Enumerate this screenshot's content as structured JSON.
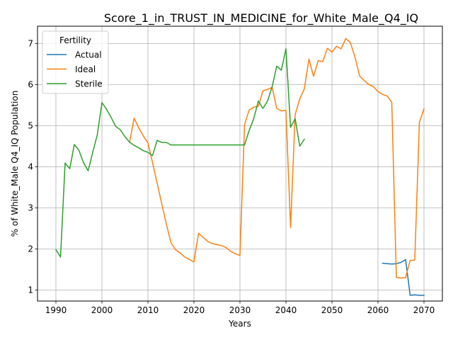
{
  "chart_data": {
    "type": "line",
    "title": "Score_1_in_TRUST_IN_MEDICINE_for_White_Male_Q4_IQ",
    "xlabel": "Years",
    "ylabel": "% of White_Male Q4_IQ Population",
    "xlim": [
      1986,
      2074
    ],
    "ylim": [
      0.73,
      7.42
    ],
    "xticks": [
      1990,
      2000,
      2010,
      2020,
      2030,
      2040,
      2050,
      2060,
      2070
    ],
    "yticks": [
      1,
      2,
      3,
      4,
      5,
      6,
      7
    ],
    "grid": true,
    "legend": {
      "title": "Fertility",
      "placement": "top-left"
    },
    "series": [
      {
        "name": "Actual",
        "color": "#1f77b4",
        "points": [
          [
            2061,
            1.65
          ],
          [
            2062,
            1.64
          ],
          [
            2063,
            1.63
          ],
          [
            2064,
            1.64
          ],
          [
            2065,
            1.67
          ],
          [
            2066,
            1.74
          ],
          [
            2067,
            0.87
          ],
          [
            2068,
            0.88
          ],
          [
            2069,
            0.87
          ],
          [
            2070,
            0.87
          ]
        ]
      },
      {
        "name": "Ideal",
        "color": "#ff7f0e",
        "points": [
          [
            2006,
            4.59
          ],
          [
            2007,
            5.18
          ],
          [
            2008,
            4.95
          ],
          [
            2009,
            4.75
          ],
          [
            2010,
            4.58
          ],
          [
            2011,
            4.1
          ],
          [
            2012,
            3.6
          ],
          [
            2013,
            3.1
          ],
          [
            2014,
            2.6
          ],
          [
            2015,
            2.15
          ],
          [
            2016,
            1.98
          ],
          [
            2017,
            1.9
          ],
          [
            2018,
            1.8
          ],
          [
            2019,
            1.74
          ],
          [
            2020,
            1.68
          ],
          [
            2021,
            2.38
          ],
          [
            2022,
            2.28
          ],
          [
            2023,
            2.18
          ],
          [
            2024,
            2.13
          ],
          [
            2025,
            2.1
          ],
          [
            2026,
            2.08
          ],
          [
            2027,
            2.03
          ],
          [
            2028,
            1.94
          ],
          [
            2029,
            1.88
          ],
          [
            2030,
            1.84
          ],
          [
            2031,
            5.02
          ],
          [
            2032,
            5.38
          ],
          [
            2033,
            5.45
          ],
          [
            2034,
            5.47
          ],
          [
            2035,
            5.85
          ],
          [
            2036,
            5.88
          ],
          [
            2037,
            5.93
          ],
          [
            2038,
            5.42
          ],
          [
            2039,
            5.36
          ],
          [
            2040,
            5.37
          ],
          [
            2041,
            2.52
          ],
          [
            2042,
            5.27
          ],
          [
            2043,
            5.65
          ],
          [
            2044,
            5.9
          ],
          [
            2045,
            6.62
          ],
          [
            2046,
            6.2
          ],
          [
            2047,
            6.58
          ],
          [
            2048,
            6.56
          ],
          [
            2049,
            6.88
          ],
          [
            2050,
            6.79
          ],
          [
            2051,
            6.93
          ],
          [
            2052,
            6.87
          ],
          [
            2053,
            7.12
          ],
          [
            2054,
            7.02
          ],
          [
            2055,
            6.67
          ],
          [
            2056,
            6.21
          ],
          [
            2057,
            6.1
          ],
          [
            2058,
            6.0
          ],
          [
            2059,
            5.95
          ],
          [
            2060,
            5.83
          ],
          [
            2061,
            5.76
          ],
          [
            2062,
            5.72
          ],
          [
            2063,
            5.57
          ],
          [
            2064,
            1.3
          ],
          [
            2065,
            1.29
          ],
          [
            2066,
            1.3
          ],
          [
            2067,
            1.72
          ],
          [
            2068,
            1.73
          ],
          [
            2069,
            5.08
          ],
          [
            2070,
            5.41
          ]
        ]
      },
      {
        "name": "Sterile",
        "color": "#2ca02c",
        "points": [
          [
            1990,
            1.98
          ],
          [
            1991,
            1.8
          ],
          [
            1992,
            4.09
          ],
          [
            1993,
            3.95
          ],
          [
            1994,
            4.54
          ],
          [
            1995,
            4.4
          ],
          [
            1996,
            4.1
          ],
          [
            1997,
            3.9
          ],
          [
            1998,
            4.35
          ],
          [
            1999,
            4.78
          ],
          [
            2000,
            5.56
          ],
          [
            2001,
            5.4
          ],
          [
            2002,
            5.2
          ],
          [
            2003,
            4.98
          ],
          [
            2004,
            4.9
          ],
          [
            2005,
            4.73
          ],
          [
            2006,
            4.6
          ],
          [
            2007,
            4.52
          ],
          [
            2008,
            4.46
          ],
          [
            2009,
            4.39
          ],
          [
            2010,
            4.35
          ],
          [
            2011,
            4.27
          ],
          [
            2012,
            4.64
          ],
          [
            2013,
            4.59
          ],
          [
            2014,
            4.59
          ],
          [
            2015,
            4.53
          ],
          [
            2016,
            4.53
          ],
          [
            2017,
            4.53
          ],
          [
            2018,
            4.53
          ],
          [
            2019,
            4.53
          ],
          [
            2020,
            4.53
          ],
          [
            2021,
            4.53
          ],
          [
            2022,
            4.53
          ],
          [
            2023,
            4.53
          ],
          [
            2024,
            4.53
          ],
          [
            2025,
            4.53
          ],
          [
            2026,
            4.53
          ],
          [
            2027,
            4.53
          ],
          [
            2028,
            4.53
          ],
          [
            2029,
            4.53
          ],
          [
            2030,
            4.53
          ],
          [
            2031,
            4.53
          ],
          [
            2032,
            4.88
          ],
          [
            2033,
            5.17
          ],
          [
            2034,
            5.6
          ],
          [
            2035,
            5.42
          ],
          [
            2036,
            5.6
          ],
          [
            2037,
            5.95
          ],
          [
            2038,
            6.45
          ],
          [
            2039,
            6.35
          ],
          [
            2040,
            6.87
          ],
          [
            2041,
            4.96
          ],
          [
            2042,
            5.17
          ],
          [
            2043,
            4.5
          ],
          [
            2044,
            4.67
          ]
        ]
      }
    ]
  }
}
